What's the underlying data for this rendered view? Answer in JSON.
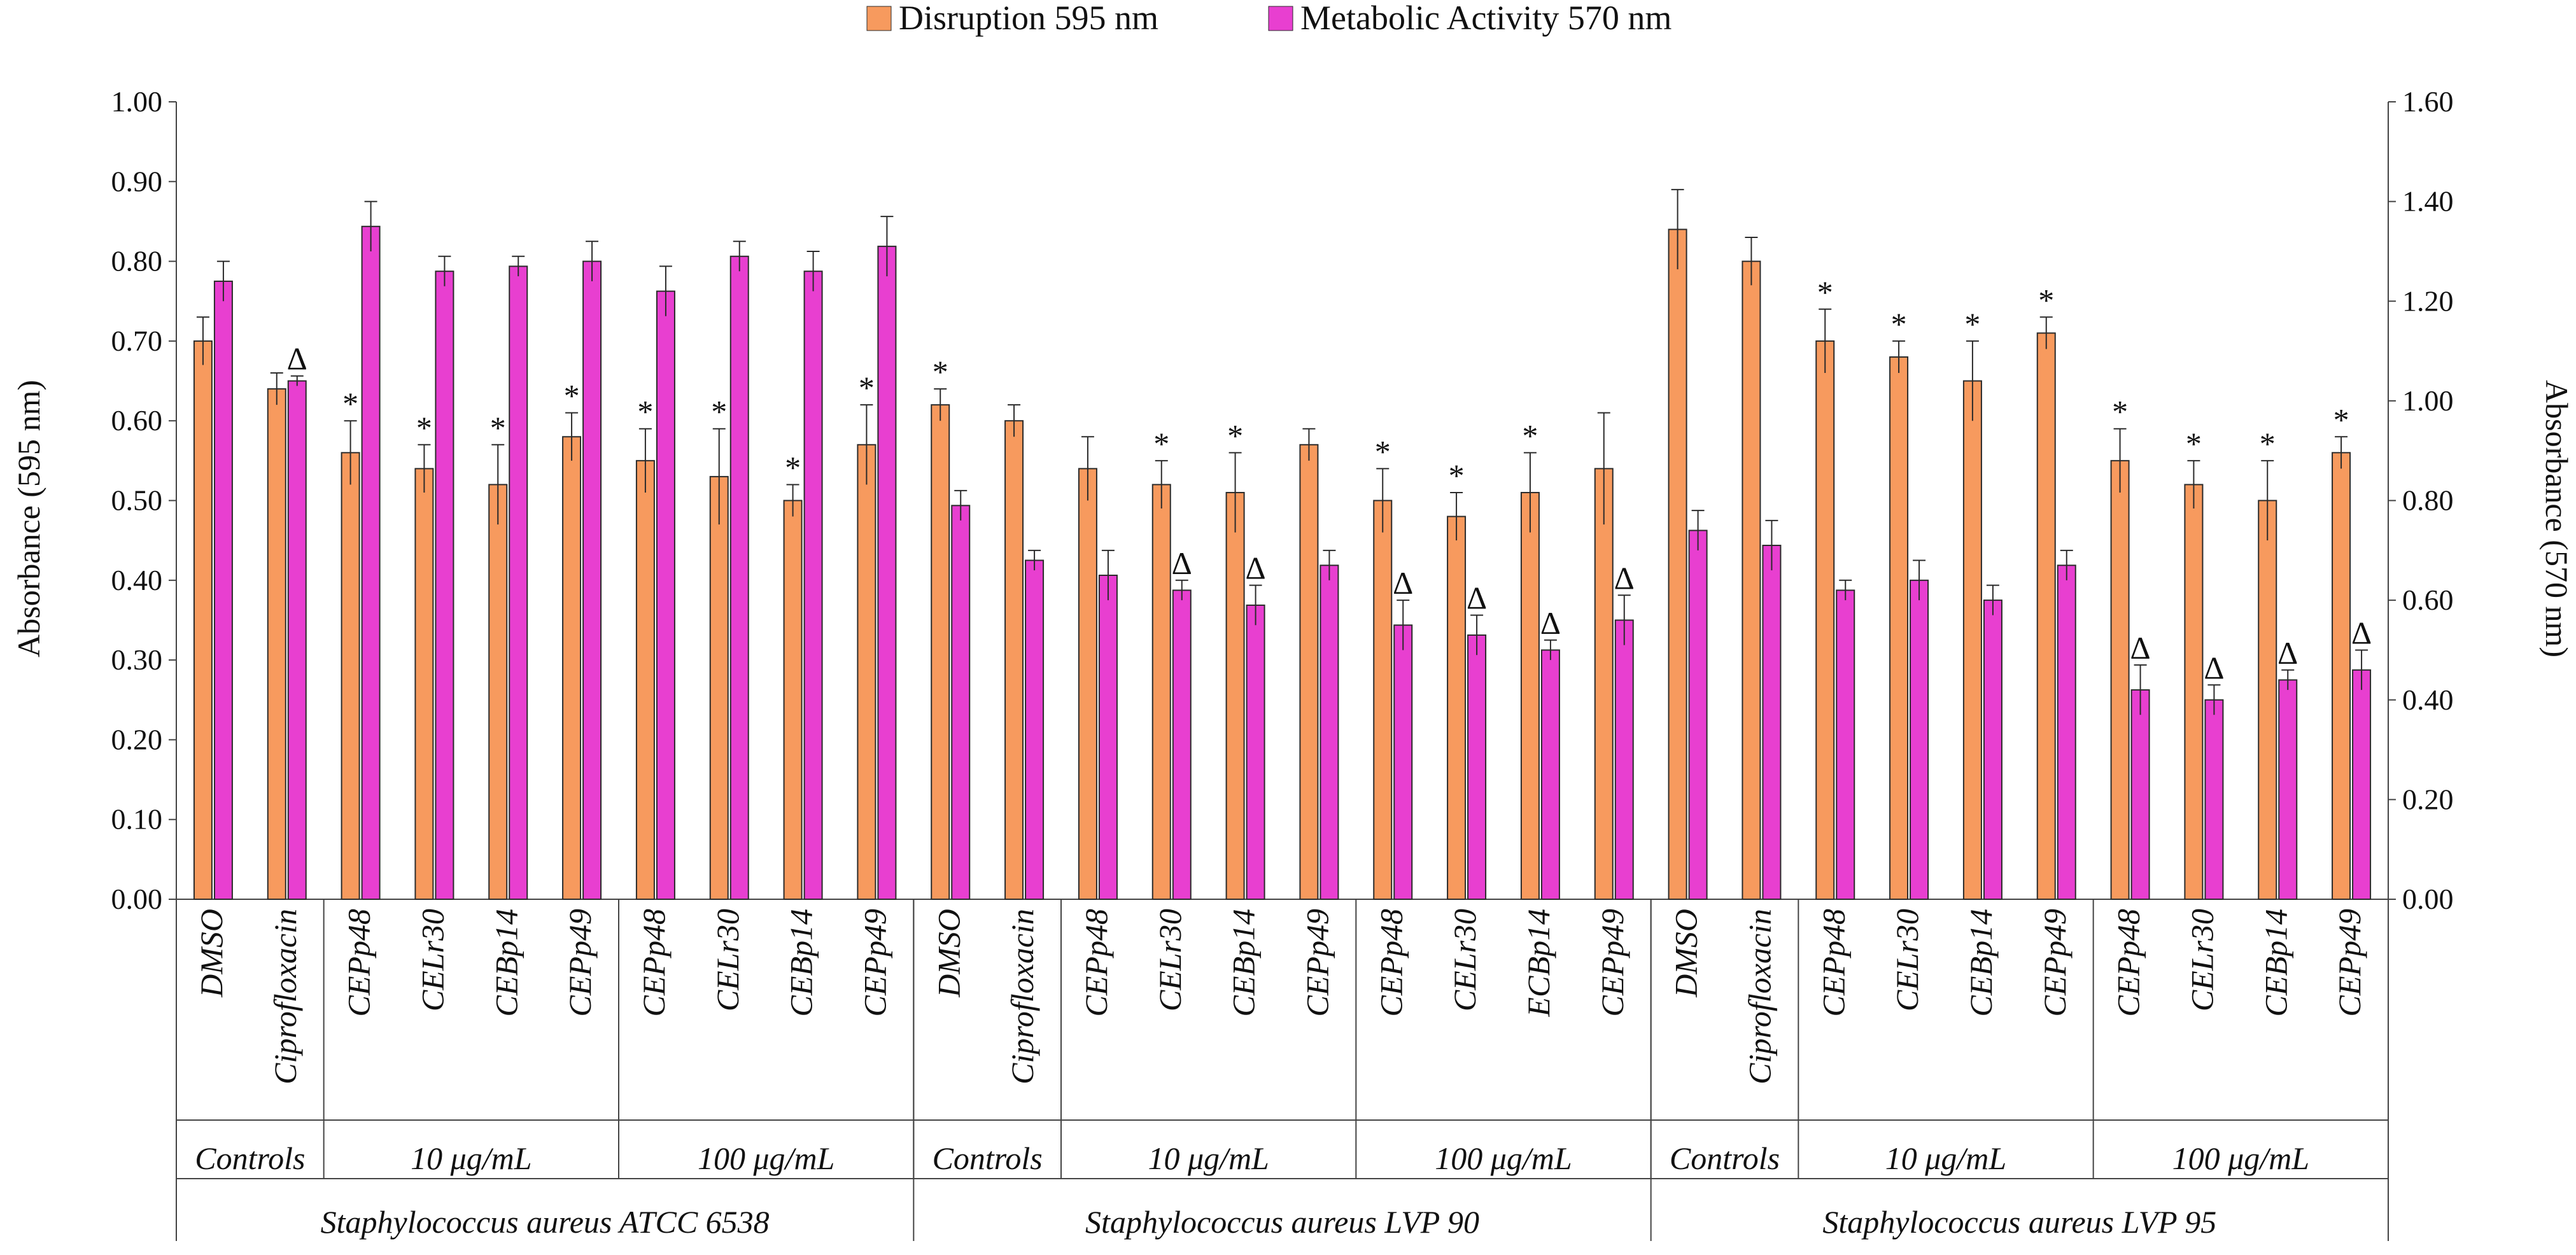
{
  "chart_data": {
    "type": "bar",
    "title": "",
    "ylabel_left": "Absorbance  (595 nm)",
    "ylabel_right": "Absorbance (570 nm)",
    "ylim_left": [
      0,
      1.0
    ],
    "ylim_right": [
      0,
      1.6
    ],
    "left_ticks": [
      "0.00",
      "0.10",
      "0.20",
      "0.30",
      "0.40",
      "0.50",
      "0.60",
      "0.70",
      "0.80",
      "0.90",
      "1.00"
    ],
    "right_ticks": [
      "0.00",
      "0.20",
      "0.40",
      "0.60",
      "0.80",
      "1.00",
      "1.20",
      "1.40",
      "1.60"
    ],
    "legend": [
      {
        "name": "Disruption 595 nm",
        "color": "#F79A5E"
      },
      {
        "name": "Metabolic Activity 570 nm",
        "color": "#E83FD0"
      }
    ],
    "colors": {
      "orange": "#F79A5E",
      "magenta": "#E83FD0",
      "edge": "#2b2b2b"
    },
    "categories": [
      "DMSO",
      "Ciprofloxacin",
      "CEPp48",
      "CELr30",
      "CEBp14",
      "CEPp49",
      "CEPp48",
      "CELr30",
      "CEBp14",
      "CEPp49",
      "DMSO",
      "Ciprofloxacin",
      "CEPp48",
      "CELr30",
      "CEBp14",
      "CEPp49",
      "CEPp48",
      "CELr30",
      "ECBp14",
      "CEPp49",
      "DMSO",
      "Ciprofloxacin",
      "CEPp48",
      "CELr30",
      "CEBp14",
      "CEPp49",
      "CEPp48",
      "CELr30",
      "CEBp14",
      "CEPp49"
    ],
    "subgroups": [
      {
        "label": "Controls",
        "start": 0,
        "end": 1
      },
      {
        "label": "10 μg/mL",
        "start": 2,
        "end": 5
      },
      {
        "label": "100 μg/mL",
        "start": 6,
        "end": 9
      },
      {
        "label": "Controls",
        "start": 10,
        "end": 11
      },
      {
        "label": "10 μg/mL",
        "start": 12,
        "end": 15
      },
      {
        "label": "100 μg/mL",
        "start": 16,
        "end": 19
      },
      {
        "label": "Controls",
        "start": 20,
        "end": 21
      },
      {
        "label": "10 μg/mL",
        "start": 22,
        "end": 25
      },
      {
        "label": "100 μg/mL",
        "start": 26,
        "end": 29
      }
    ],
    "groups": [
      {
        "label": "Staphylococcus aureus ATCC 6538",
        "start": 0,
        "end": 9
      },
      {
        "label": "Staphylococcus aureus LVP 90",
        "start": 10,
        "end": 19
      },
      {
        "label": "Staphylococcus aureus LVP 95",
        "start": 20,
        "end": 29
      }
    ],
    "series": [
      {
        "name": "Disruption 595 nm",
        "axis": "left",
        "values": [
          0.7,
          0.64,
          0.56,
          0.54,
          0.52,
          0.58,
          0.55,
          0.53,
          0.5,
          0.57,
          0.62,
          0.6,
          0.54,
          0.52,
          0.51,
          0.57,
          0.5,
          0.48,
          0.51,
          0.54,
          0.84,
          0.8,
          0.7,
          0.68,
          0.65,
          0.71,
          0.55,
          0.52,
          0.5,
          0.56
        ],
        "errors": [
          0.03,
          0.02,
          0.04,
          0.03,
          0.05,
          0.03,
          0.04,
          0.06,
          0.02,
          0.05,
          0.02,
          0.02,
          0.04,
          0.03,
          0.05,
          0.02,
          0.04,
          0.03,
          0.05,
          0.07,
          0.05,
          0.03,
          0.04,
          0.02,
          0.05,
          0.02,
          0.04,
          0.03,
          0.05,
          0.02
        ],
        "marks": [
          "",
          "",
          "*",
          "*",
          "*",
          "*",
          "*",
          "*",
          "*",
          "*",
          "*",
          "",
          "",
          "*",
          "*",
          "",
          "*",
          "*",
          "*",
          "",
          "",
          "",
          "*",
          "*",
          "*",
          "*",
          "*",
          "*",
          "*",
          "*"
        ]
      },
      {
        "name": "Metabolic Activity 570 nm",
        "axis": "right",
        "values": [
          1.24,
          1.04,
          1.35,
          1.26,
          1.27,
          1.28,
          1.22,
          1.29,
          1.26,
          1.31,
          0.79,
          0.68,
          0.65,
          0.62,
          0.59,
          0.67,
          0.55,
          0.53,
          0.5,
          0.56,
          0.74,
          0.71,
          0.62,
          0.64,
          0.6,
          0.67,
          0.42,
          0.4,
          0.44,
          0.46
        ],
        "errors": [
          0.04,
          0.01,
          0.05,
          0.03,
          0.02,
          0.04,
          0.05,
          0.03,
          0.04,
          0.06,
          0.03,
          0.02,
          0.05,
          0.02,
          0.04,
          0.03,
          0.05,
          0.04,
          0.02,
          0.05,
          0.04,
          0.05,
          0.02,
          0.04,
          0.03,
          0.03,
          0.05,
          0.03,
          0.02,
          0.04
        ],
        "marks": [
          "",
          "Δ",
          "",
          "",
          "",
          "",
          "",
          "",
          "",
          "",
          "",
          "",
          "",
          "Δ",
          "Δ",
          "",
          "Δ",
          "Δ",
          "Δ",
          "Δ",
          "",
          "",
          "",
          "",
          "",
          "",
          "Δ",
          "Δ",
          "Δ",
          "Δ"
        ]
      }
    ]
  }
}
